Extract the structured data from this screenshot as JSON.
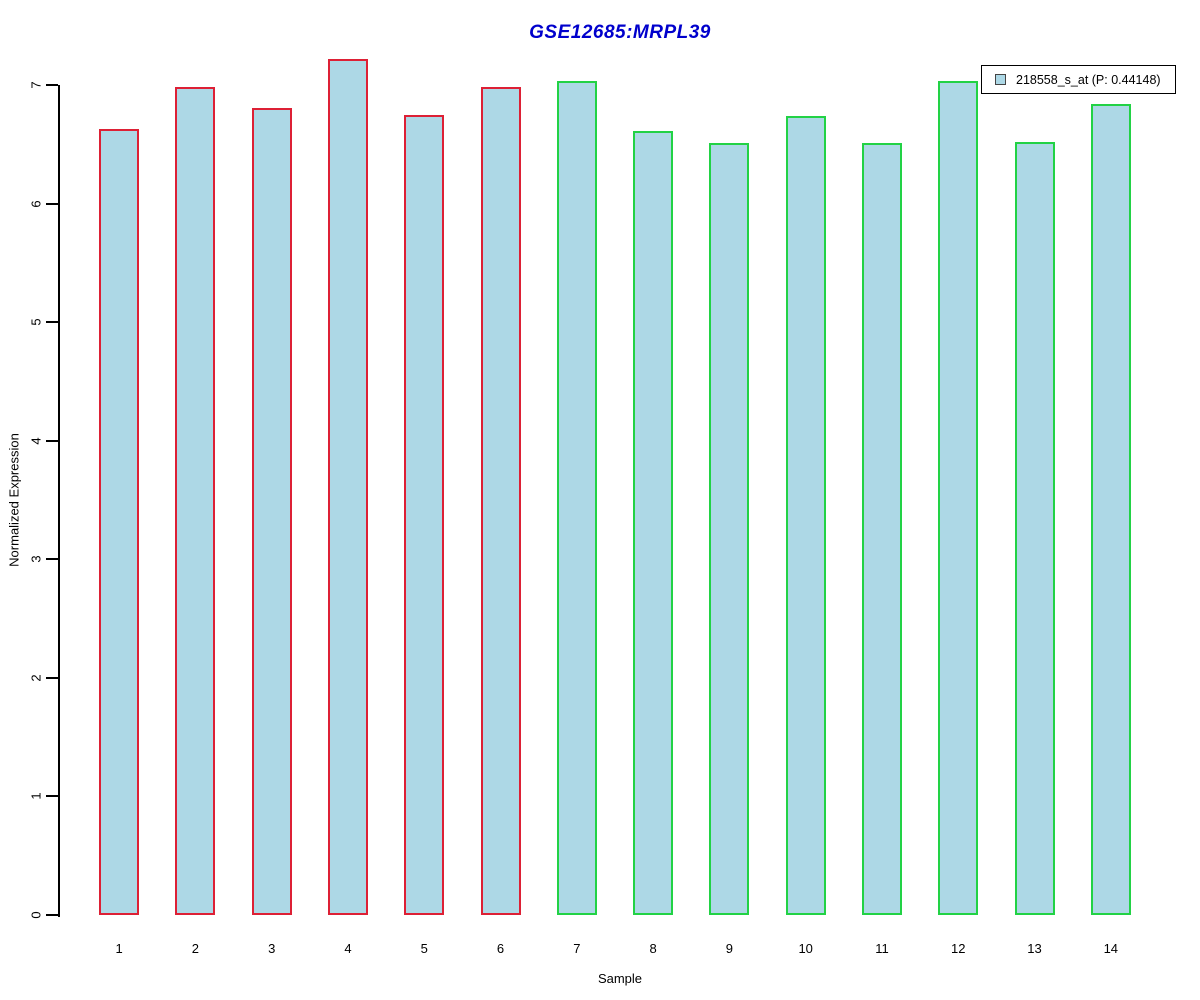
{
  "title": {
    "text": "GSE12685:MRPL39",
    "color": "#0000cc"
  },
  "legend": {
    "label": "218558_s_at (P: 0.44148)",
    "probe": "218558_s_at",
    "p_value": "0.44148",
    "swatch_color": "#add8e6",
    "position": "top-right"
  },
  "chart_data": {
    "type": "bar",
    "title": "GSE12685:MRPL39",
    "xlabel": "Sample",
    "ylabel": "Normalized Expression",
    "ylim": [
      0,
      7
    ],
    "yticks": [
      0,
      1,
      2,
      3,
      4,
      5,
      6,
      7
    ],
    "grid": false,
    "categories": [
      "1",
      "2",
      "3",
      "4",
      "5",
      "6",
      "7",
      "8",
      "9",
      "10",
      "11",
      "12",
      "13",
      "14"
    ],
    "values": [
      6.63,
      6.98,
      6.81,
      7.22,
      6.75,
      6.98,
      7.03,
      6.61,
      6.51,
      6.74,
      6.51,
      7.03,
      6.52,
      6.84
    ],
    "series_name": "218558_s_at (P: 0.44148)",
    "bar_fill": "#add8e6",
    "groups": [
      1,
      1,
      1,
      1,
      1,
      1,
      2,
      2,
      2,
      2,
      2,
      2,
      2,
      2
    ],
    "group_colors": {
      "1": "#dd2035",
      "2": "#22d245"
    },
    "legend_position": "top-right"
  }
}
